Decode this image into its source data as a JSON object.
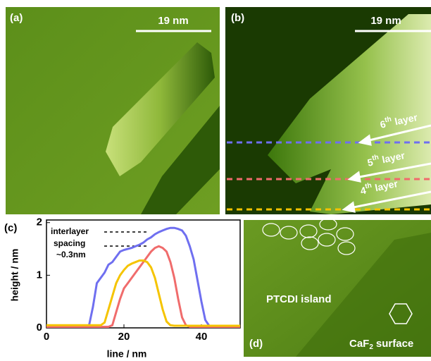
{
  "panels": {
    "a": {
      "label": "(a)",
      "scale": "19 nm"
    },
    "b": {
      "label": "(b)",
      "scale": "19 nm",
      "layers": [
        {
          "num": "6",
          "sup": "th",
          "word": "layer"
        },
        {
          "num": "5",
          "sup": "th",
          "word": "layer"
        },
        {
          "num": "4",
          "sup": "th",
          "word": "layer"
        }
      ]
    },
    "c": {
      "label": "(c)"
    },
    "d": {
      "label": "(d)",
      "island": "PTCDI island",
      "surface": {
        "base": "CaF",
        "sub": "2",
        "rest": "surface"
      }
    }
  },
  "chart_data": {
    "type": "line",
    "xlabel": "line / nm",
    "ylabel": "height / nm",
    "annotations": [
      "interlayer",
      "spacing",
      "~0.3nm"
    ],
    "xlim": [
      0,
      50
    ],
    "ylim": [
      0,
      2.05
    ],
    "xticks": [
      0,
      20,
      40
    ],
    "yticks": [
      0,
      1,
      2
    ],
    "x": [
      0,
      1,
      2,
      3,
      4,
      5,
      6,
      7,
      8,
      9,
      10,
      11,
      12,
      13,
      14,
      15,
      16,
      17,
      18,
      19,
      20,
      21,
      22,
      23,
      24,
      25,
      26,
      27,
      28,
      29,
      30,
      31,
      32,
      33,
      34,
      35,
      36,
      37,
      38,
      39,
      40,
      41,
      42,
      43,
      44,
      45,
      46,
      47,
      48,
      49,
      50
    ],
    "series": [
      {
        "color": "#6f6ff0",
        "values": [
          0.03,
          0.03,
          0.03,
          0.03,
          0.03,
          0.03,
          0.03,
          0.03,
          0.03,
          0.03,
          0.03,
          0.05,
          0.4,
          0.85,
          0.95,
          1.05,
          1.2,
          1.25,
          1.35,
          1.45,
          1.48,
          1.5,
          1.52,
          1.55,
          1.58,
          1.62,
          1.68,
          1.72,
          1.78,
          1.82,
          1.85,
          1.88,
          1.9,
          1.9,
          1.88,
          1.85,
          1.75,
          1.55,
          1.3,
          0.9,
          0.5,
          0.15,
          0.04,
          0.03,
          0.03,
          0.03,
          0.03,
          0.03,
          0.03,
          0.03,
          0.03
        ]
      },
      {
        "color": "#f06c6c",
        "values": [
          0.02,
          0.02,
          0.02,
          0.02,
          0.02,
          0.02,
          0.02,
          0.02,
          0.02,
          0.02,
          0.02,
          0.02,
          0.02,
          0.02,
          0.02,
          0.02,
          0.02,
          0.05,
          0.3,
          0.55,
          0.75,
          0.85,
          0.95,
          1.05,
          1.15,
          1.25,
          1.35,
          1.45,
          1.52,
          1.55,
          1.52,
          1.45,
          1.25,
          0.95,
          0.55,
          0.2,
          0.05,
          0.02,
          0.02,
          0.02,
          0.02,
          0.02,
          0.02,
          0.02,
          0.02,
          0.02,
          0.02,
          0.02,
          0.02,
          0.02,
          0.02
        ]
      },
      {
        "color": "#f5c400",
        "values": [
          0.05,
          0.05,
          0.05,
          0.05,
          0.05,
          0.05,
          0.05,
          0.05,
          0.05,
          0.05,
          0.05,
          0.05,
          0.05,
          0.05,
          0.05,
          0.1,
          0.35,
          0.6,
          0.85,
          1.0,
          1.1,
          1.18,
          1.22,
          1.25,
          1.28,
          1.28,
          1.25,
          1.15,
          0.95,
          0.65,
          0.35,
          0.12,
          0.05,
          0.04,
          0.04,
          0.04,
          0.04,
          0.04,
          0.04,
          0.04,
          0.04,
          0.04,
          0.04,
          0.04,
          0.04,
          0.04,
          0.04,
          0.04,
          0.04,
          0.04,
          0.04
        ]
      }
    ]
  }
}
